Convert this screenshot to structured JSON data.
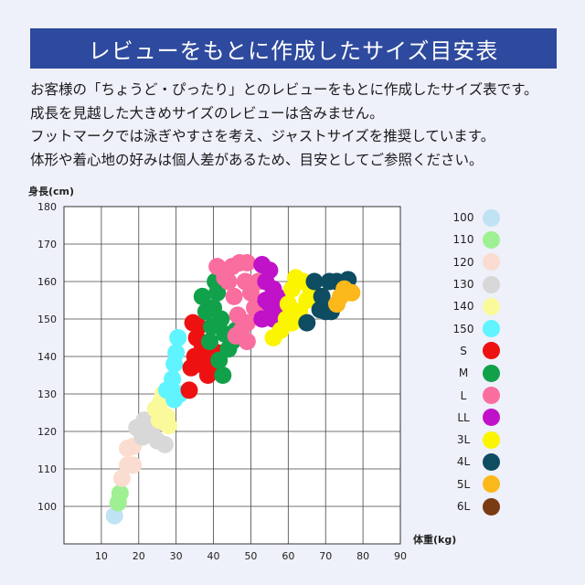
{
  "header": {
    "title": "レビューをもとに作成したサイズ目安表"
  },
  "intro": {
    "lines": [
      "お客様の「ちょうど・ぴったり」とのレビューをもとに作成したサイズ表です。",
      "成長を見越した大きめサイズのレビューは含みません。",
      "フットマークでは泳ぎやすさを考え、ジャストサイズを推奨しています。",
      "体形や着心地の好みは個人差があるため、目安としてご参照ください。"
    ]
  },
  "chart_data": {
    "type": "scatter",
    "ylabel": "身長(cm)",
    "xlabel": "体重(kg)",
    "xlim": [
      0,
      90
    ],
    "ylim": [
      90,
      180
    ],
    "x_ticks": [
      10,
      20,
      30,
      40,
      50,
      60,
      70,
      80,
      90
    ],
    "y_ticks": [
      100,
      110,
      120,
      130,
      140,
      150,
      160,
      170,
      180
    ],
    "grid": true,
    "legend_position": "right",
    "series": [
      {
        "name": "100",
        "color": "#bfe3f3",
        "points": [
          [
            13.5,
            97.5
          ]
        ]
      },
      {
        "name": "110",
        "color": "#9ef092",
        "points": [
          [
            14.5,
            101
          ],
          [
            15,
            103.5
          ]
        ]
      },
      {
        "name": "120",
        "color": "#fbdcd0",
        "points": [
          [
            15.5,
            107.5
          ],
          [
            17,
            111
          ],
          [
            18.5,
            111
          ],
          [
            17,
            115.5
          ],
          [
            18.5,
            116
          ]
        ]
      },
      {
        "name": "130",
        "color": "#d8d8d8",
        "points": [
          [
            19.5,
            121
          ],
          [
            21.5,
            123
          ],
          [
            23,
            120
          ],
          [
            24,
            121.5
          ],
          [
            25,
            117.5
          ],
          [
            27,
            116.5
          ],
          [
            21,
            118.5
          ]
        ]
      },
      {
        "name": "140",
        "color": "#fafa9a",
        "points": [
          [
            24.5,
            126
          ],
          [
            26,
            128
          ],
          [
            26.5,
            130
          ],
          [
            27.5,
            124
          ],
          [
            28,
            121.5
          ],
          [
            25.5,
            123
          ]
        ]
      },
      {
        "name": "150",
        "color": "#5ff4ff",
        "points": [
          [
            27.5,
            131
          ],
          [
            29,
            134
          ],
          [
            29.5,
            138
          ],
          [
            30,
            141
          ],
          [
            30.5,
            145
          ],
          [
            31,
            130
          ],
          [
            29.5,
            128.5
          ]
        ]
      },
      {
        "name": "S",
        "color": "#ee1111",
        "points": [
          [
            33.5,
            131
          ],
          [
            34,
            137
          ],
          [
            35,
            140
          ],
          [
            35.5,
            145
          ],
          [
            36,
            148
          ],
          [
            37,
            143
          ],
          [
            37.5,
            137.5
          ],
          [
            39,
            140
          ],
          [
            38.5,
            135
          ],
          [
            40,
            137
          ],
          [
            41,
            141
          ],
          [
            34.5,
            149
          ]
        ]
      },
      {
        "name": "M",
        "color": "#11a14a",
        "points": [
          [
            37,
            156
          ],
          [
            38,
            152
          ],
          [
            39.5,
            148
          ],
          [
            40,
            153
          ],
          [
            41,
            157
          ],
          [
            42,
            150
          ],
          [
            43,
            146
          ],
          [
            44,
            142
          ],
          [
            41.5,
            139
          ],
          [
            42.5,
            135
          ],
          [
            45,
            144
          ],
          [
            46,
            147
          ],
          [
            40.5,
            160
          ],
          [
            39,
            144
          ]
        ]
      },
      {
        "name": "L",
        "color": "#f96d9f",
        "points": [
          [
            41,
            164
          ],
          [
            43,
            161
          ],
          [
            45,
            164
          ],
          [
            47,
            165
          ],
          [
            49,
            165
          ],
          [
            48.5,
            160
          ],
          [
            50,
            157
          ],
          [
            51,
            153
          ],
          [
            49,
            149
          ],
          [
            46.5,
            151
          ],
          [
            45.5,
            156
          ],
          [
            47.5,
            147
          ],
          [
            49,
            144
          ],
          [
            52,
            160
          ],
          [
            44,
            160
          ],
          [
            46,
            145.5
          ]
        ]
      },
      {
        "name": "LL",
        "color": "#c012c8",
        "points": [
          [
            53,
            164.5
          ],
          [
            55,
            163
          ],
          [
            54,
            160
          ],
          [
            56,
            158
          ],
          [
            57,
            156
          ],
          [
            55,
            154
          ],
          [
            57.5,
            152
          ],
          [
            53,
            150
          ],
          [
            54,
            155
          ],
          [
            56,
            150
          ],
          [
            58.5,
            151
          ]
        ]
      },
      {
        "name": "3L",
        "color": "#fbf501",
        "points": [
          [
            56,
            145
          ],
          [
            58,
            147
          ],
          [
            59.5,
            150
          ],
          [
            60,
            154
          ],
          [
            61,
            158
          ],
          [
            62,
            161
          ],
          [
            64,
            160
          ],
          [
            66,
            158
          ],
          [
            65,
            155
          ],
          [
            63,
            152
          ],
          [
            61,
            149
          ]
        ]
      },
      {
        "name": "4L",
        "color": "#0e4c62",
        "points": [
          [
            65,
            149
          ],
          [
            67,
            160
          ],
          [
            69,
            156
          ],
          [
            70,
            152
          ],
          [
            71,
            160
          ],
          [
            73,
            160
          ],
          [
            76,
            160.5
          ],
          [
            68.5,
            152.5
          ],
          [
            71.5,
            152
          ]
        ]
      },
      {
        "name": "5L",
        "color": "#fbb81b",
        "points": [
          [
            74,
            156
          ],
          [
            75,
            158
          ],
          [
            77,
            157
          ],
          [
            73,
            154
          ]
        ]
      },
      {
        "name": "6L",
        "color": "#7a3a12",
        "points": []
      }
    ]
  }
}
